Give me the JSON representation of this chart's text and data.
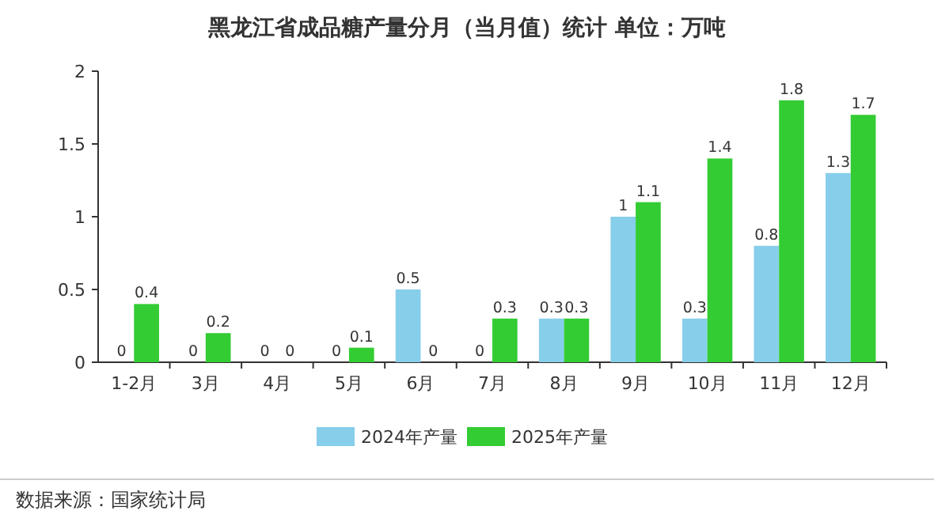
{
  "chart_data": {
    "type": "bar",
    "title": "黑龙江省成品糖产量分月（当月值）统计 单位：万吨",
    "categories": [
      "1-2月",
      "3月",
      "4月",
      "5月",
      "6月",
      "7月",
      "8月",
      "9月",
      "10月",
      "11月",
      "12月"
    ],
    "series": [
      {
        "name": "2024年产量",
        "color": "#87ceeb",
        "values": [
          0,
          0,
          0,
          0,
          0.5,
          0,
          0.3,
          1,
          0.3,
          0.8,
          1.3
        ]
      },
      {
        "name": "2025年产量",
        "color": "#33cc33",
        "values": [
          0.4,
          0.2,
          0,
          0.1,
          0,
          0.3,
          0.3,
          1.1,
          1.4,
          1.8,
          1.7
        ]
      }
    ],
    "ylim": [
      0,
      2
    ],
    "yticks": [
      0,
      0.5,
      1,
      1.5,
      2
    ],
    "data_labels": true,
    "legend": "bottom",
    "grid": false,
    "annotations": [
      "数据来源：国家统计局"
    ]
  }
}
